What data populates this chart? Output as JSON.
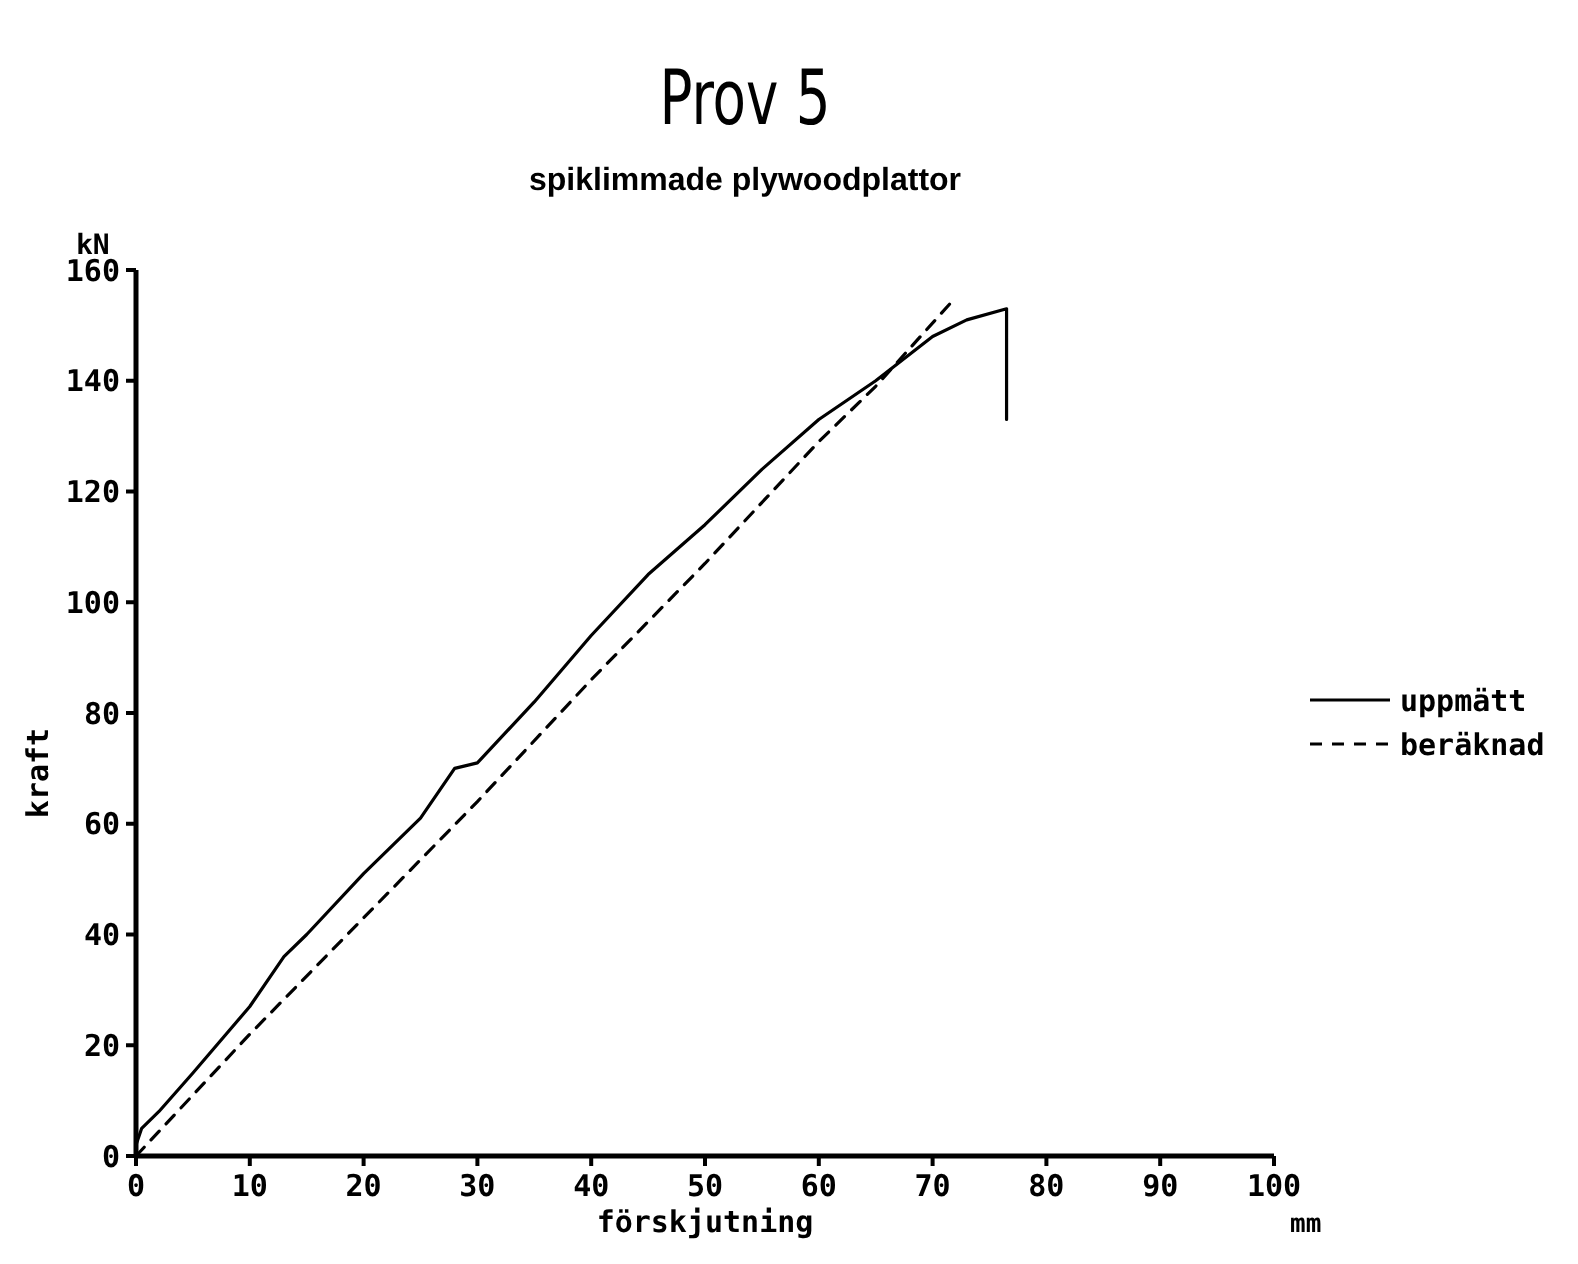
{
  "chart_data": {
    "type": "line",
    "title": "Prov 5",
    "subtitle": "spiklimmade plywoodplattor",
    "xlabel": "förskjutning",
    "ylabel": "kraft",
    "annotations": [
      "kN",
      "mm"
    ],
    "xlim": [
      0,
      100
    ],
    "xticks": [
      0,
      10,
      20,
      30,
      40,
      50,
      60,
      70,
      80,
      90,
      100
    ],
    "ylim": [
      0,
      160
    ],
    "yticks": [
      0,
      20,
      40,
      60,
      80,
      100,
      120,
      140,
      160
    ],
    "grid": false,
    "legend": "right",
    "series": [
      {
        "name": "uppmätt",
        "color": "#000000",
        "line_style": "solid",
        "x": [
          0,
          0.5,
          2,
          5,
          10,
          13,
          15,
          20,
          25,
          28,
          30,
          35,
          40,
          45,
          50,
          55,
          60,
          65,
          70,
          73,
          76.5,
          76.5
        ],
        "values": [
          2,
          5,
          8,
          15,
          27,
          36,
          40,
          51,
          61,
          70,
          71,
          82,
          94,
          105,
          114,
          124,
          133,
          140,
          148,
          151,
          153,
          133
        ]
      },
      {
        "name": "beräknad",
        "color": "#000000",
        "line_style": "dashed",
        "x": [
          0,
          10,
          20,
          30,
          40,
          50,
          60,
          65,
          72
        ],
        "values": [
          0,
          22,
          43,
          64,
          86,
          107,
          129,
          139,
          155
        ]
      }
    ]
  }
}
